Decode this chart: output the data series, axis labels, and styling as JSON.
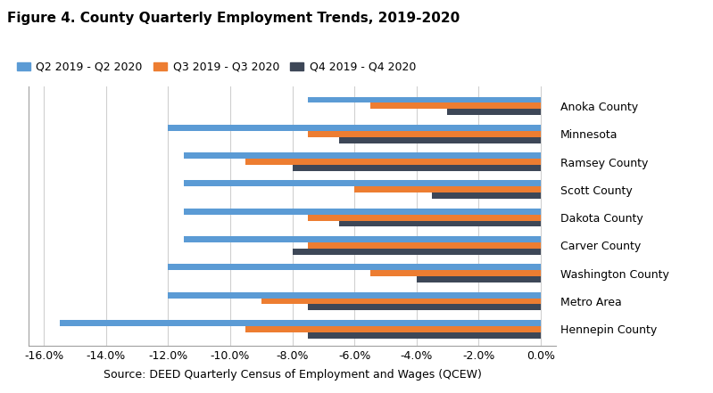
{
  "title": "Figure 4. County Quarterly Employment Trends, 2019-2020",
  "categories": [
    "Anoka County",
    "Minnesota",
    "Ramsey County",
    "Scott County",
    "Dakota County",
    "Carver County",
    "Washington County",
    "Metro Area",
    "Hennepin County"
  ],
  "series": {
    "Q2 2019 - Q2 2020": [
      -7.5,
      -12.0,
      -11.5,
      -11.5,
      -11.5,
      -11.5,
      -12.0,
      -12.0,
      -15.5
    ],
    "Q3 2019 - Q3 2020": [
      -5.5,
      -7.5,
      -9.5,
      -6.0,
      -7.5,
      -7.5,
      -5.5,
      -9.0,
      -9.5
    ],
    "Q4 2019 - Q4 2020": [
      -3.0,
      -6.5,
      -8.0,
      -3.5,
      -6.5,
      -8.0,
      -4.0,
      -7.5,
      -7.5
    ]
  },
  "colors": {
    "Q2 2019 - Q2 2020": "#5B9BD5",
    "Q3 2019 - Q3 2020": "#ED7D31",
    "Q4 2019 - Q4 2020": "#3D4757"
  },
  "xlim": [
    -16.5,
    0.5
  ],
  "xticks": [
    -16,
    -14,
    -12,
    -10,
    -8,
    -6,
    -4,
    -2,
    0
  ],
  "xlabel": "Source: DEED Quarterly Census of Employment and Wages (QCEW)",
  "plot_bg": "#ffffff",
  "fig_bg": "#ffffff",
  "grid_color": "#d0d0d0",
  "title_fontsize": 11,
  "legend_fontsize": 9,
  "tick_fontsize": 9,
  "bar_height": 0.22
}
